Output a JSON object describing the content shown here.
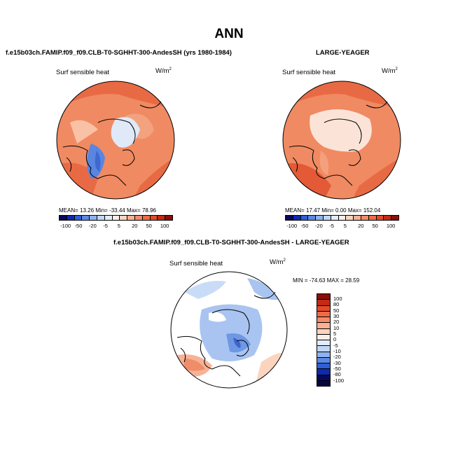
{
  "title": "ANN",
  "panel1": {
    "case": "f.e15b03ch.FAMIP.f09_f09.CLB-T0-SGHHT-300-AndesSH (yrs 1980-1984)",
    "variable": "Surf sensible heat",
    "units": "W/m",
    "units_sup": "2",
    "stats": "MEAN=  13.26   Min=  -33.44   Max=   78.96"
  },
  "panel2": {
    "case": "LARGE-YEAGER",
    "variable": "Surf sensible heat",
    "units": "W/m",
    "units_sup": "2",
    "stats": "MEAN=  17.47   Min=    0.00   Max=  152.04"
  },
  "diff_panel": {
    "case": "f.e15b03ch.FAMIP.f09_f09.CLB-T0-SGHHT-300-AndesSH - LARGE-YEAGER",
    "variable": "Surf sensible heat",
    "units": "W/m",
    "units_sup": "2",
    "stats": "MIN = -74.63  MAX =  28.59"
  },
  "colorbar_top": {
    "labels": [
      "-100",
      "-50",
      "-20",
      "-5",
      "5",
      "20",
      "50",
      "100"
    ],
    "colors": [
      "#08085e",
      "#0d2bb0",
      "#2f5fd8",
      "#5b8ae6",
      "#8fb2ee",
      "#c0d6f6",
      "#e2ecfb",
      "#fbeee6",
      "#fbd4bf",
      "#f9b093",
      "#f58a69",
      "#ef6a47",
      "#e44a2a",
      "#c42a14",
      "#8a0f06"
    ]
  },
  "colorbar_diff": {
    "labels": [
      "100",
      "80",
      "50",
      "30",
      "20",
      "10",
      "5",
      "0",
      "-5",
      "-10",
      "-20",
      "-30",
      "-50",
      "-80",
      "-100"
    ],
    "colors": [
      "#8a0f06",
      "#c42a14",
      "#e44a2a",
      "#ef6a47",
      "#f58a69",
      "#f9b093",
      "#fbd4bf",
      "#fbeee6",
      "#e2ecfb",
      "#c0d6f6",
      "#8fb2ee",
      "#5b8ae6",
      "#2f5fd8",
      "#0d2bb0",
      "#08085e",
      "#050540"
    ]
  }
}
